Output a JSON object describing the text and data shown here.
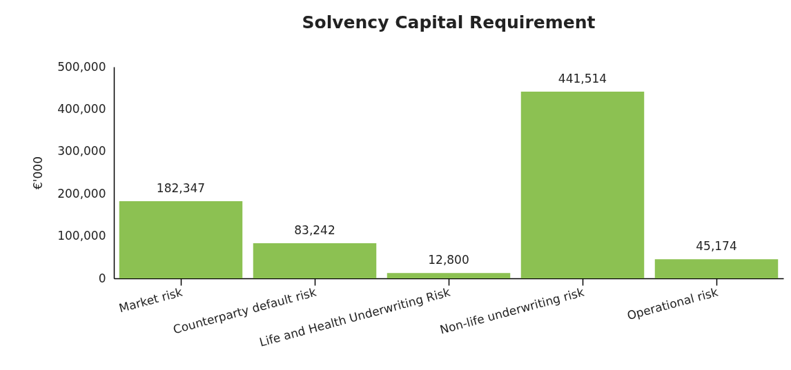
{
  "chart_data": {
    "type": "bar",
    "title": "Solvency Capital Requirement",
    "ylabel": "€'000",
    "categories": [
      "Market risk",
      "Counterparty default risk",
      "Life and Health Underwriting Risk",
      "Non-life underwriting risk",
      "Operational risk"
    ],
    "values": [
      182347,
      83242,
      12800,
      441514,
      45174
    ],
    "color": "#8cc152",
    "value_labels": [
      "182,347",
      "83,242",
      "12,800",
      "441,514",
      "45,174"
    ],
    "ylim": [
      0,
      500000
    ],
    "yticks": [
      0,
      {
        "value": 100000,
        "label": "100,000"
      },
      {
        "value": 200000,
        "label": "200,000"
      },
      {
        "value": 300000,
        "label": "300,000"
      },
      {
        "value": 400000,
        "label": "400,000"
      },
      {
        "value": 500000,
        "label": "500,000"
      }
    ],
    "grid": false
  }
}
